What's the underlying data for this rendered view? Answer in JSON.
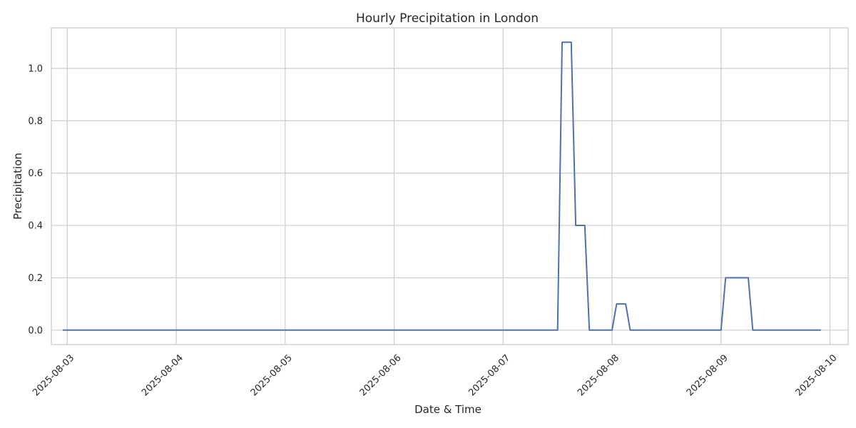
{
  "chart_data": {
    "type": "line",
    "title": "Hourly Precipitation in London",
    "xlabel": "Date & Time",
    "ylabel": "Precipitation",
    "x_axis_type": "datetime",
    "xlim": [
      "2025-08-02T20:30",
      "2025-08-10T04:00"
    ],
    "ylim": [
      -0.055,
      1.155
    ],
    "grid": true,
    "line_color": "#4c72b0",
    "x_ticks": [
      "2025-08-03",
      "2025-08-04",
      "2025-08-05",
      "2025-08-06",
      "2025-08-07",
      "2025-08-08",
      "2025-08-09",
      "2025-08-10"
    ],
    "y_ticks": [
      "0.0",
      "0.2",
      "0.4",
      "0.6",
      "0.8",
      "1.0"
    ],
    "series": [
      {
        "points": [
          [
            "2025-08-02T23:00",
            0.0
          ],
          [
            "2025-08-07T12:00",
            0.0
          ],
          [
            "2025-08-07T13:00",
            1.1
          ],
          [
            "2025-08-07T15:00",
            1.1
          ],
          [
            "2025-08-07T16:00",
            0.4
          ],
          [
            "2025-08-07T18:00",
            0.4
          ],
          [
            "2025-08-07T19:00",
            0.0
          ],
          [
            "2025-08-08T00:00",
            0.0
          ],
          [
            "2025-08-08T01:00",
            0.1
          ],
          [
            "2025-08-08T03:00",
            0.1
          ],
          [
            "2025-08-08T04:00",
            0.0
          ],
          [
            "2025-08-09T00:00",
            0.0
          ],
          [
            "2025-08-09T01:00",
            0.2
          ],
          [
            "2025-08-09T06:00",
            0.2
          ],
          [
            "2025-08-09T07:00",
            0.0
          ],
          [
            "2025-08-09T22:00",
            0.0
          ]
        ]
      }
    ]
  }
}
